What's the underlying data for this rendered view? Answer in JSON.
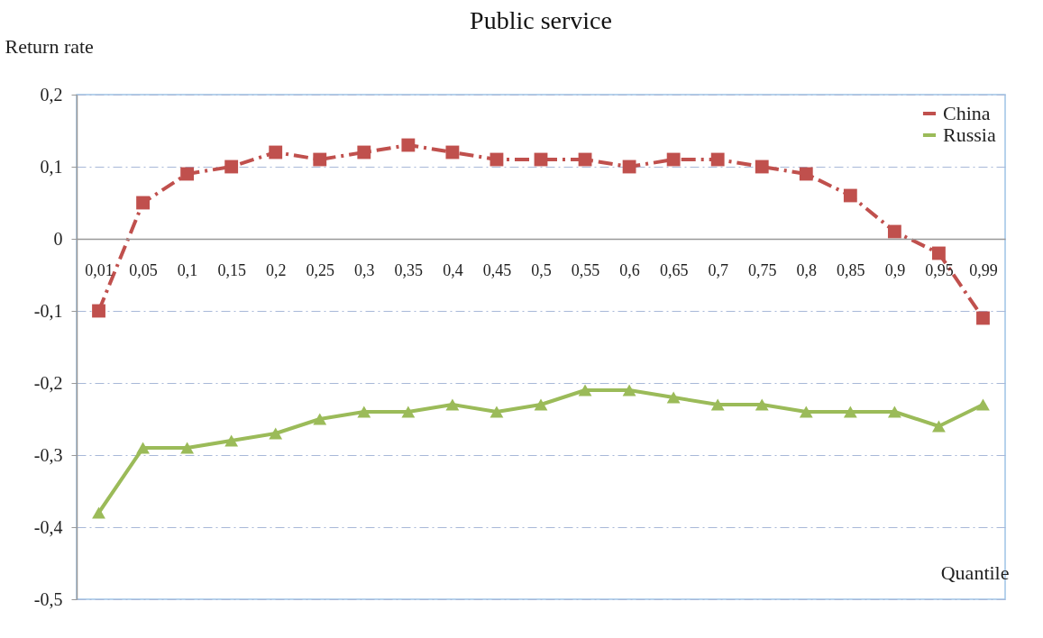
{
  "chart_data": {
    "type": "line",
    "title": "Public service",
    "xlabel": "Quantile",
    "ylabel": "Return rate",
    "categories": [
      "0,01",
      "0,05",
      "0,1",
      "0,15",
      "0,2",
      "0,25",
      "0,3",
      "0,35",
      "0,4",
      "0,45",
      "0,5",
      "0,55",
      "0,6",
      "0,65",
      "0,7",
      "0,75",
      "0,8",
      "0,85",
      "0,9",
      "0,95",
      "0,99"
    ],
    "series": [
      {
        "name": "China",
        "color": "#c0504d",
        "marker": "square",
        "line_style": "dashed",
        "values": [
          -0.1,
          0.05,
          0.09,
          0.1,
          0.12,
          0.11,
          0.12,
          0.13,
          0.12,
          0.11,
          0.11,
          0.11,
          0.1,
          0.11,
          0.11,
          0.1,
          0.09,
          0.06,
          0.01,
          -0.02,
          -0.11
        ]
      },
      {
        "name": "Russia",
        "color": "#9bbb59",
        "marker": "triangle",
        "line_style": "solid",
        "values": [
          -0.38,
          -0.29,
          -0.29,
          -0.28,
          -0.27,
          -0.25,
          -0.24,
          -0.24,
          -0.23,
          -0.24,
          -0.23,
          -0.21,
          -0.21,
          -0.22,
          -0.23,
          -0.23,
          -0.24,
          -0.24,
          -0.24,
          -0.26,
          -0.23
        ]
      }
    ],
    "ylim": [
      -0.5,
      0.2
    ],
    "yticks": [
      {
        "value": -0.5,
        "label": "-0,5"
      },
      {
        "value": -0.4,
        "label": "-0,4"
      },
      {
        "value": -0.3,
        "label": "-0,3"
      },
      {
        "value": -0.2,
        "label": "-0,2"
      },
      {
        "value": -0.1,
        "label": "-0,1"
      },
      0,
      {
        "value": 0.1,
        "label": "0,1"
      },
      {
        "value": 0.2,
        "label": "0,2"
      }
    ],
    "grid": "y",
    "legend": "top right"
  }
}
